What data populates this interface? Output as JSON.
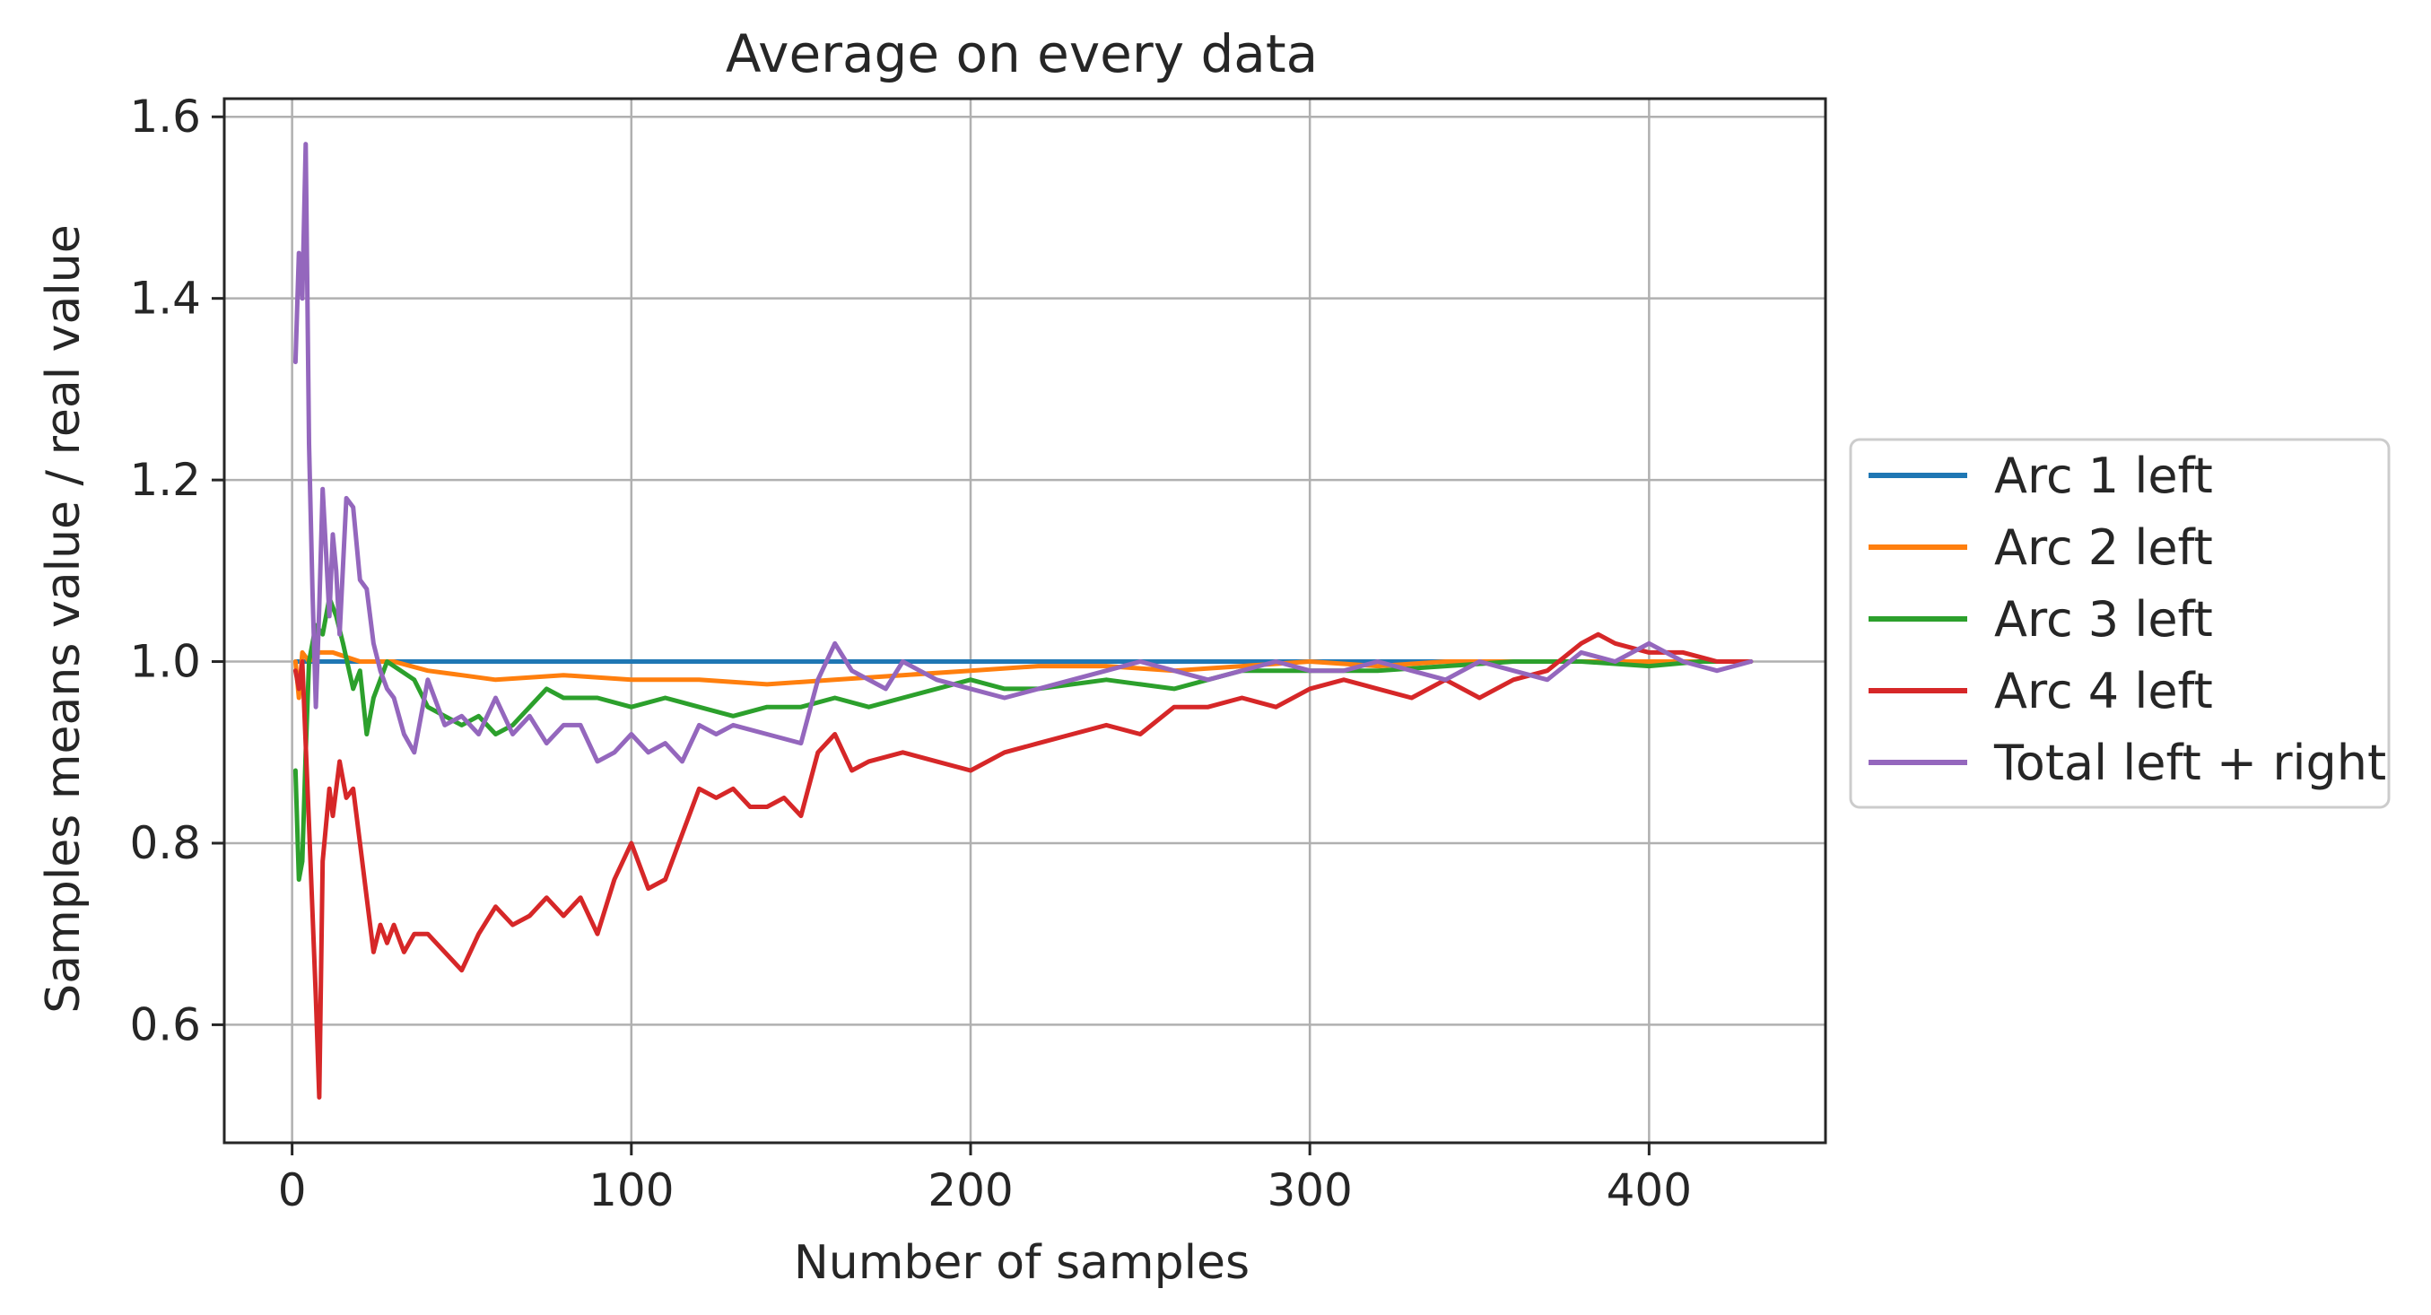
{
  "chart_data": {
    "type": "line",
    "title": "Average on every data",
    "xlabel": "Number of samples",
    "ylabel": "Samples means value / real value",
    "xlim": [
      -20,
      452
    ],
    "ylim": [
      0.47,
      1.62
    ],
    "xticks": [
      0,
      100,
      200,
      300,
      400
    ],
    "yticks": [
      0.6,
      0.8,
      1.0,
      1.2,
      1.4,
      1.6
    ],
    "xtick_labels": [
      "0",
      "100",
      "200",
      "300",
      "400"
    ],
    "ytick_labels": [
      "0.6",
      "0.8",
      "1.0",
      "1.2",
      "1.4",
      "1.6"
    ],
    "grid": true,
    "legend_position": "right, outside plot",
    "series": [
      {
        "name": "Arc 1 left",
        "color": "#1f77b4",
        "x": [
          1,
          3,
          5,
          10,
          20,
          40,
          80,
          150,
          250,
          350,
          430
        ],
        "y": [
          1.0,
          1.0,
          1.0,
          1.0,
          1.0,
          1.0,
          1.0,
          1.0,
          1.0,
          1.0,
          1.0
        ]
      },
      {
        "name": "Arc 2 left",
        "color": "#ff7f0e",
        "x": [
          1,
          2,
          3,
          5,
          8,
          12,
          20,
          30,
          40,
          50,
          60,
          80,
          100,
          120,
          140,
          160,
          180,
          200,
          220,
          240,
          260,
          280,
          300,
          320,
          340,
          360,
          380,
          400,
          415,
          430
        ],
        "y": [
          1.0,
          0.96,
          1.01,
          1.0,
          1.01,
          1.01,
          1.0,
          1.0,
          0.99,
          0.985,
          0.98,
          0.985,
          0.98,
          0.98,
          0.975,
          0.98,
          0.985,
          0.99,
          0.995,
          0.995,
          0.99,
          0.995,
          1.0,
          0.995,
          1.0,
          1.0,
          1.0,
          1.0,
          1.0,
          1.0
        ]
      },
      {
        "name": "Arc 3 left",
        "color": "#2ca02c",
        "x": [
          1,
          2,
          3,
          4,
          5,
          7,
          9,
          11,
          13,
          15,
          18,
          20,
          22,
          24,
          26,
          28,
          32,
          36,
          40,
          45,
          50,
          55,
          60,
          65,
          70,
          75,
          80,
          90,
          100,
          110,
          120,
          130,
          140,
          150,
          160,
          170,
          180,
          190,
          200,
          210,
          220,
          240,
          260,
          280,
          300,
          320,
          340,
          360,
          380,
          400,
          415,
          430
        ],
        "y": [
          0.88,
          0.76,
          0.78,
          0.9,
          1.0,
          1.04,
          1.03,
          1.07,
          1.05,
          1.02,
          0.97,
          0.99,
          0.92,
          0.96,
          0.98,
          1.0,
          0.99,
          0.98,
          0.95,
          0.94,
          0.93,
          0.94,
          0.92,
          0.93,
          0.95,
          0.97,
          0.96,
          0.96,
          0.95,
          0.96,
          0.95,
          0.94,
          0.95,
          0.95,
          0.96,
          0.95,
          0.96,
          0.97,
          0.98,
          0.97,
          0.97,
          0.98,
          0.97,
          0.99,
          0.99,
          0.99,
          0.995,
          1.0,
          1.0,
          0.995,
          1.0,
          1.0
        ]
      },
      {
        "name": "Arc 4 left",
        "color": "#d62728",
        "x": [
          1,
          2,
          3,
          5,
          7,
          8,
          9,
          11,
          12,
          14,
          16,
          18,
          20,
          22,
          24,
          26,
          28,
          30,
          33,
          36,
          40,
          45,
          50,
          55,
          60,
          65,
          70,
          75,
          80,
          85,
          90,
          95,
          100,
          105,
          110,
          115,
          120,
          125,
          130,
          135,
          140,
          145,
          150,
          155,
          160,
          165,
          170,
          180,
          190,
          200,
          210,
          220,
          230,
          240,
          250,
          260,
          270,
          280,
          290,
          300,
          310,
          320,
          330,
          340,
          350,
          360,
          370,
          380,
          385,
          390,
          400,
          410,
          420,
          430
        ],
        "y": [
          0.99,
          0.97,
          1.0,
          0.82,
          0.63,
          0.52,
          0.78,
          0.86,
          0.83,
          0.89,
          0.85,
          0.86,
          0.8,
          0.74,
          0.68,
          0.71,
          0.69,
          0.71,
          0.68,
          0.7,
          0.7,
          0.68,
          0.66,
          0.7,
          0.73,
          0.71,
          0.72,
          0.74,
          0.72,
          0.74,
          0.7,
          0.76,
          0.8,
          0.75,
          0.76,
          0.81,
          0.86,
          0.85,
          0.86,
          0.84,
          0.84,
          0.85,
          0.83,
          0.9,
          0.92,
          0.88,
          0.89,
          0.9,
          0.89,
          0.88,
          0.9,
          0.91,
          0.92,
          0.93,
          0.92,
          0.95,
          0.95,
          0.96,
          0.95,
          0.97,
          0.98,
          0.97,
          0.96,
          0.98,
          0.96,
          0.98,
          0.99,
          1.02,
          1.03,
          1.02,
          1.01,
          1.01,
          1.0,
          1.0
        ]
      },
      {
        "name": "Total left + right",
        "color": "#9467bd",
        "x": [
          1,
          2,
          3,
          4,
          5,
          6,
          7,
          8,
          9,
          10,
          11,
          12,
          13,
          14,
          16,
          18,
          20,
          22,
          24,
          26,
          28,
          30,
          33,
          36,
          40,
          45,
          50,
          55,
          60,
          65,
          70,
          75,
          80,
          85,
          90,
          95,
          100,
          105,
          110,
          115,
          120,
          125,
          130,
          140,
          150,
          155,
          160,
          165,
          170,
          175,
          180,
          190,
          200,
          210,
          220,
          230,
          240,
          250,
          260,
          270,
          280,
          290,
          300,
          310,
          320,
          330,
          340,
          350,
          360,
          370,
          380,
          390,
          400,
          410,
          420,
          430
        ],
        "y": [
          1.33,
          1.45,
          1.4,
          1.57,
          1.24,
          1.08,
          0.95,
          1.06,
          1.19,
          1.12,
          1.05,
          1.14,
          1.1,
          1.03,
          1.18,
          1.17,
          1.09,
          1.08,
          1.02,
          0.99,
          0.97,
          0.96,
          0.92,
          0.9,
          0.98,
          0.93,
          0.94,
          0.92,
          0.96,
          0.92,
          0.94,
          0.91,
          0.93,
          0.93,
          0.89,
          0.9,
          0.92,
          0.9,
          0.91,
          0.89,
          0.93,
          0.92,
          0.93,
          0.92,
          0.91,
          0.98,
          1.02,
          0.99,
          0.98,
          0.97,
          1.0,
          0.98,
          0.97,
          0.96,
          0.97,
          0.98,
          0.99,
          1.0,
          0.99,
          0.98,
          0.99,
          1.0,
          0.99,
          0.99,
          1.0,
          0.99,
          0.98,
          1.0,
          0.99,
          0.98,
          1.01,
          1.0,
          1.02,
          1.0,
          0.99,
          1.0
        ]
      }
    ]
  }
}
